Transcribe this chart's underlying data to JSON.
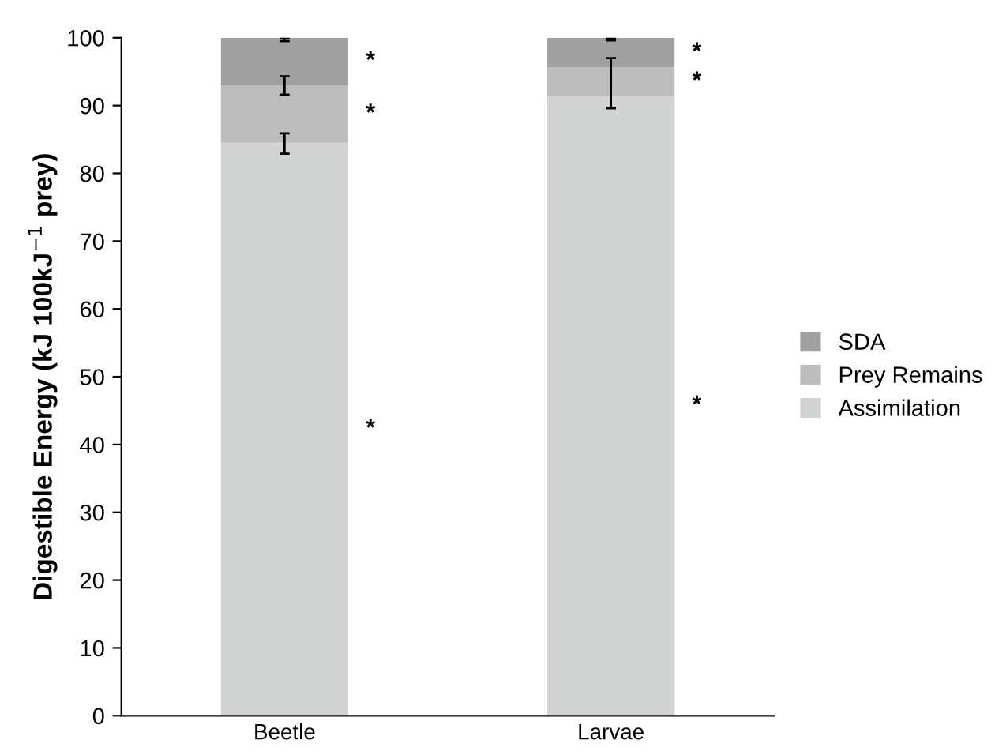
{
  "chart_data": {
    "type": "bar",
    "stacked": true,
    "ylabel": "Digestible Energy (kJ 100kJ$^{−1}$ prey)",
    "categories": [
      "Beetle",
      "Larvae"
    ],
    "series": [
      {
        "name": "Assimilation",
        "color": "#d2d4d3",
        "values": [
          84.5,
          91.4
        ],
        "errors": [
          [
            82.9,
            85.9
          ],
          null
        ]
      },
      {
        "name": "Prey Remains",
        "color": "#bdbdbd",
        "values": [
          8.5,
          4.2
        ],
        "errors": [
          [
            91.6,
            94.3
          ],
          [
            89.6,
            97.0
          ]
        ]
      },
      {
        "name": "SDA",
        "color": "#a0a0a0",
        "values": [
          7.0,
          4.4
        ],
        "errors": [
          [
            99.5,
            100
          ],
          [
            99.6,
            100
          ]
        ]
      }
    ],
    "ylim": [
      0,
      100
    ],
    "yticks": [
      0,
      10,
      20,
      30,
      40,
      50,
      60,
      70,
      80,
      90,
      100
    ],
    "grid": false,
    "legend": "right",
    "annotations": [
      "*",
      "*",
      "*",
      "*",
      "*",
      "*"
    ]
  }
}
